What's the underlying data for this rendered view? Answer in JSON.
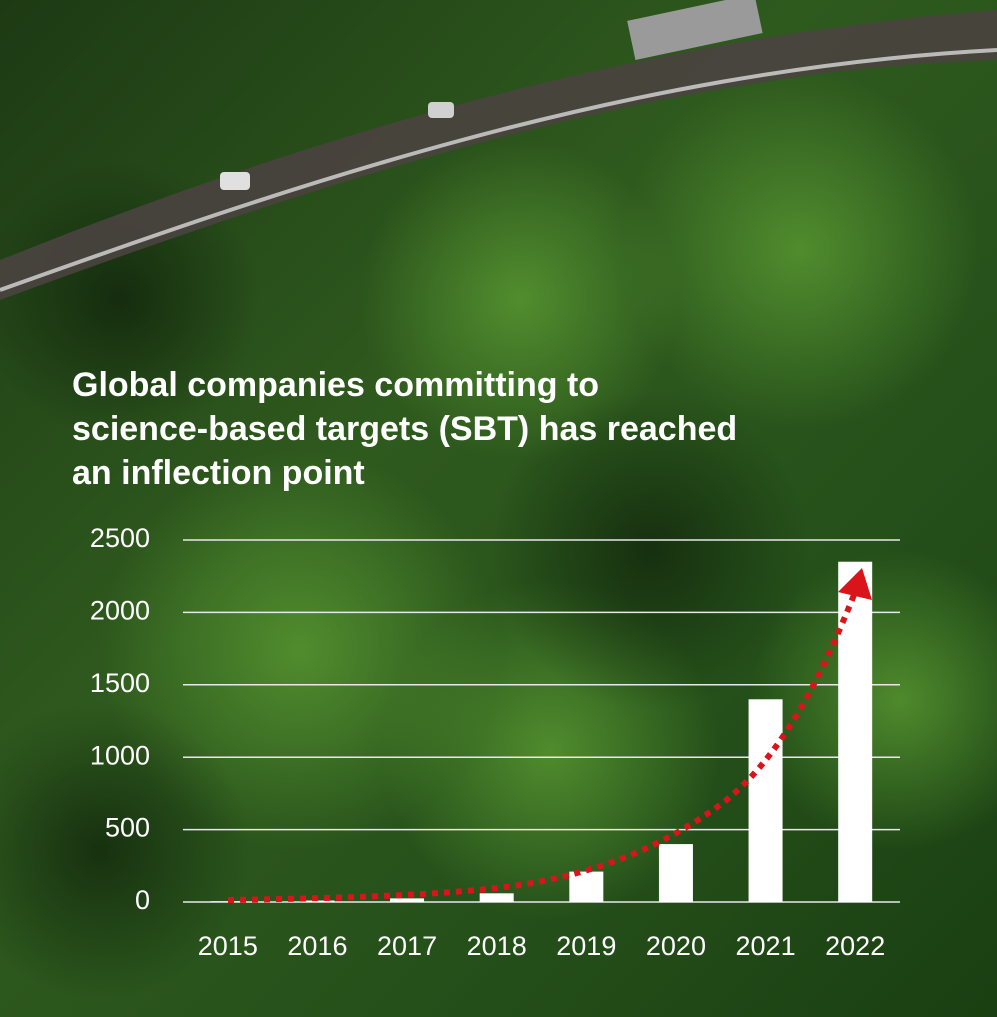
{
  "chart_data": {
    "type": "bar",
    "title": [
      "Global companies committing to",
      "science-based targets (SBT) has reached",
      "an inflection point"
    ],
    "categories": [
      "2015",
      "2016",
      "2017",
      "2018",
      "2019",
      "2020",
      "2021",
      "2022"
    ],
    "values": [
      5,
      10,
      25,
      60,
      210,
      400,
      1400,
      2350
    ],
    "color": "#ffffff",
    "ylim": [
      0,
      2500
    ],
    "yticks": [
      0,
      500,
      1000,
      1500,
      2000,
      2500
    ],
    "grid": true
  }
}
